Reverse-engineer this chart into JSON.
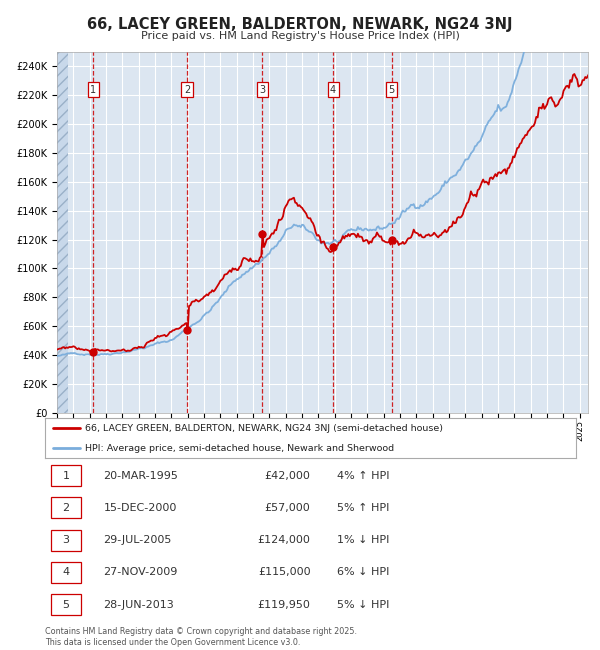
{
  "title_line1": "66, LACEY GREEN, BALDERTON, NEWARK, NG24 3NJ",
  "title_line2": "Price paid vs. HM Land Registry's House Price Index (HPI)",
  "background_color": "#ffffff",
  "plot_bg_color": "#dce6f1",
  "grid_color": "#ffffff",
  "hpi_line_color": "#7aaddc",
  "price_line_color": "#cc0000",
  "sale_marker_color": "#cc0000",
  "sale_points": [
    {
      "date_num": 1995.22,
      "price": 42000,
      "label": "1"
    },
    {
      "date_num": 2000.96,
      "price": 57000,
      "label": "2"
    },
    {
      "date_num": 2005.57,
      "price": 124000,
      "label": "3"
    },
    {
      "date_num": 2009.9,
      "price": 115000,
      "label": "4"
    },
    {
      "date_num": 2013.49,
      "price": 119950,
      "label": "5"
    }
  ],
  "vline_dates": [
    1995.22,
    2000.96,
    2005.57,
    2009.9,
    2013.49
  ],
  "ylim": [
    0,
    250000
  ],
  "yticks": [
    0,
    20000,
    40000,
    60000,
    80000,
    100000,
    120000,
    140000,
    160000,
    180000,
    200000,
    220000,
    240000
  ],
  "xlim_start": 1993.0,
  "xlim_end": 2025.5,
  "legend_line1": "66, LACEY GREEN, BALDERTON, NEWARK, NG24 3NJ (semi-detached house)",
  "legend_line2": "HPI: Average price, semi-detached house, Newark and Sherwood",
  "table_rows": [
    [
      "1",
      "20-MAR-1995",
      "£42,000",
      "4% ↑ HPI"
    ],
    [
      "2",
      "15-DEC-2000",
      "£57,000",
      "5% ↑ HPI"
    ],
    [
      "3",
      "29-JUL-2005",
      "£124,000",
      "1% ↓ HPI"
    ],
    [
      "4",
      "27-NOV-2009",
      "£115,000",
      "6% ↓ HPI"
    ],
    [
      "5",
      "28-JUN-2013",
      "£119,950",
      "5% ↓ HPI"
    ]
  ],
  "footer_text": "Contains HM Land Registry data © Crown copyright and database right 2025.\nThis data is licensed under the Open Government Licence v3.0."
}
